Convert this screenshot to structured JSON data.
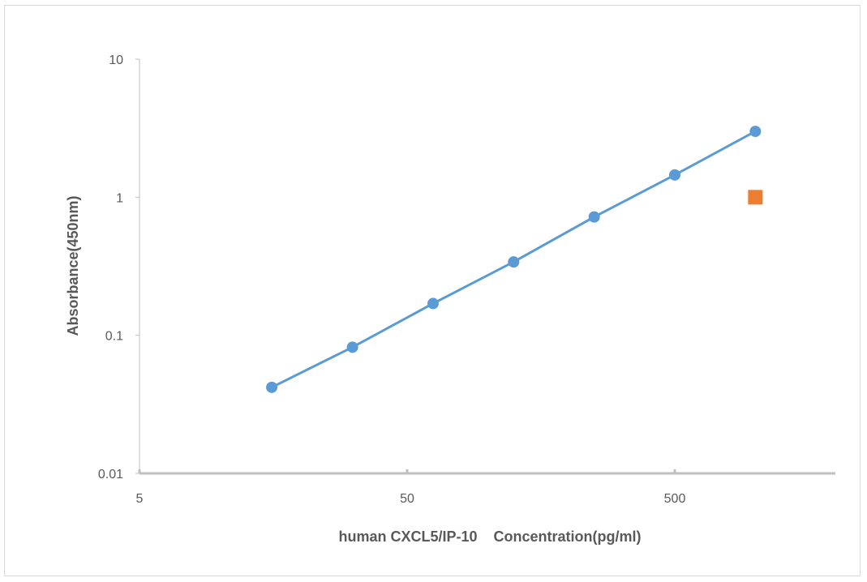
{
  "chart_data": {
    "type": "scatter",
    "title": "",
    "xlabel": "human CXCL5/IP-10    Concentration(pg/ml)",
    "ylabel": "Absorbance(450nm)",
    "x_scale": "log",
    "y_scale": "log",
    "xlim": [
      5,
      2000
    ],
    "ylim": [
      0.01,
      10
    ],
    "x_ticks": [
      5,
      50,
      500
    ],
    "x_tick_labels": [
      "5",
      "50",
      "500"
    ],
    "y_ticks": [
      0.01,
      0.1,
      1,
      10
    ],
    "y_tick_labels": [
      "0.01",
      "0.1",
      "1",
      "10"
    ],
    "grid": false,
    "legend": "none",
    "series": [
      {
        "x": [
          15.6,
          31.25,
          62.5,
          125,
          250,
          500,
          1000
        ],
        "y": [
          0.042,
          0.082,
          0.17,
          0.34,
          0.72,
          1.45,
          3.0
        ],
        "color": "#5b9bd5",
        "marker": "circle",
        "line": true
      },
      {
        "x": [
          1000
        ],
        "y": [
          1.0
        ],
        "color": "#ed7d31",
        "marker": "square",
        "line": false
      }
    ]
  }
}
